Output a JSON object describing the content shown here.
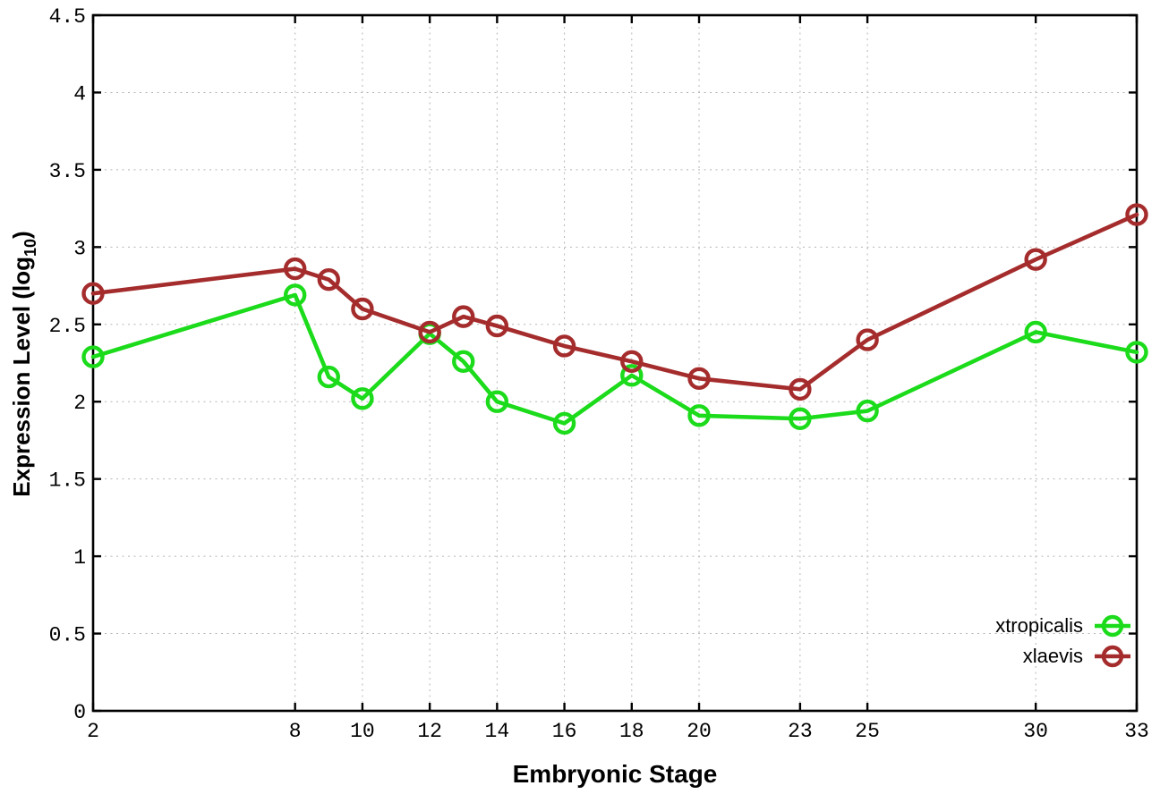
{
  "page": {
    "background": "#ffffff"
  },
  "chart_data": {
    "type": "line",
    "title": "",
    "xlabel": "Embryonic Stage",
    "ylabel": "Expression Level (log10)",
    "ylabel_prefix": "Expression Level (log",
    "ylabel_sub": "10",
    "ylabel_suffix": ")",
    "xlim": [
      2,
      33
    ],
    "ylim": [
      0,
      4.5
    ],
    "x": [
      2,
      8,
      9,
      10,
      12,
      13,
      14,
      16,
      18,
      20,
      23,
      25,
      30,
      33
    ],
    "xticks": [
      2,
      8,
      10,
      12,
      14,
      16,
      18,
      20,
      23,
      25,
      30,
      33
    ],
    "xtick_labels": [
      "2",
      "8",
      "10",
      "12",
      "14",
      "16",
      "18",
      "20",
      "23",
      "25",
      "30",
      "33"
    ],
    "yticks": [
      0,
      0.5,
      1,
      1.5,
      2,
      2.5,
      3,
      3.5,
      4,
      4.5
    ],
    "ytick_labels": [
      "0",
      "0.5",
      "1",
      "1.5",
      "2",
      "2.5",
      "3",
      "3.5",
      "4",
      "4.5"
    ],
    "grid": true,
    "legend_position": "bottom-right",
    "marker": "open-circle",
    "series": [
      {
        "name": "xtropicalis",
        "color": "#1bdb1b",
        "values": [
          2.29,
          2.69,
          2.16,
          2.02,
          2.44,
          2.26,
          2.0,
          1.86,
          2.17,
          1.91,
          1.89,
          1.94,
          2.45,
          2.32
        ]
      },
      {
        "name": "xlaevis",
        "color": "#a52c2c",
        "values": [
          2.7,
          2.86,
          2.79,
          2.6,
          2.45,
          2.55,
          2.49,
          2.36,
          2.26,
          2.15,
          2.08,
          2.4,
          2.92,
          3.21
        ]
      }
    ],
    "colors": {
      "grid": "#b5b5b5",
      "border": "#000000",
      "text": "#000000"
    }
  }
}
